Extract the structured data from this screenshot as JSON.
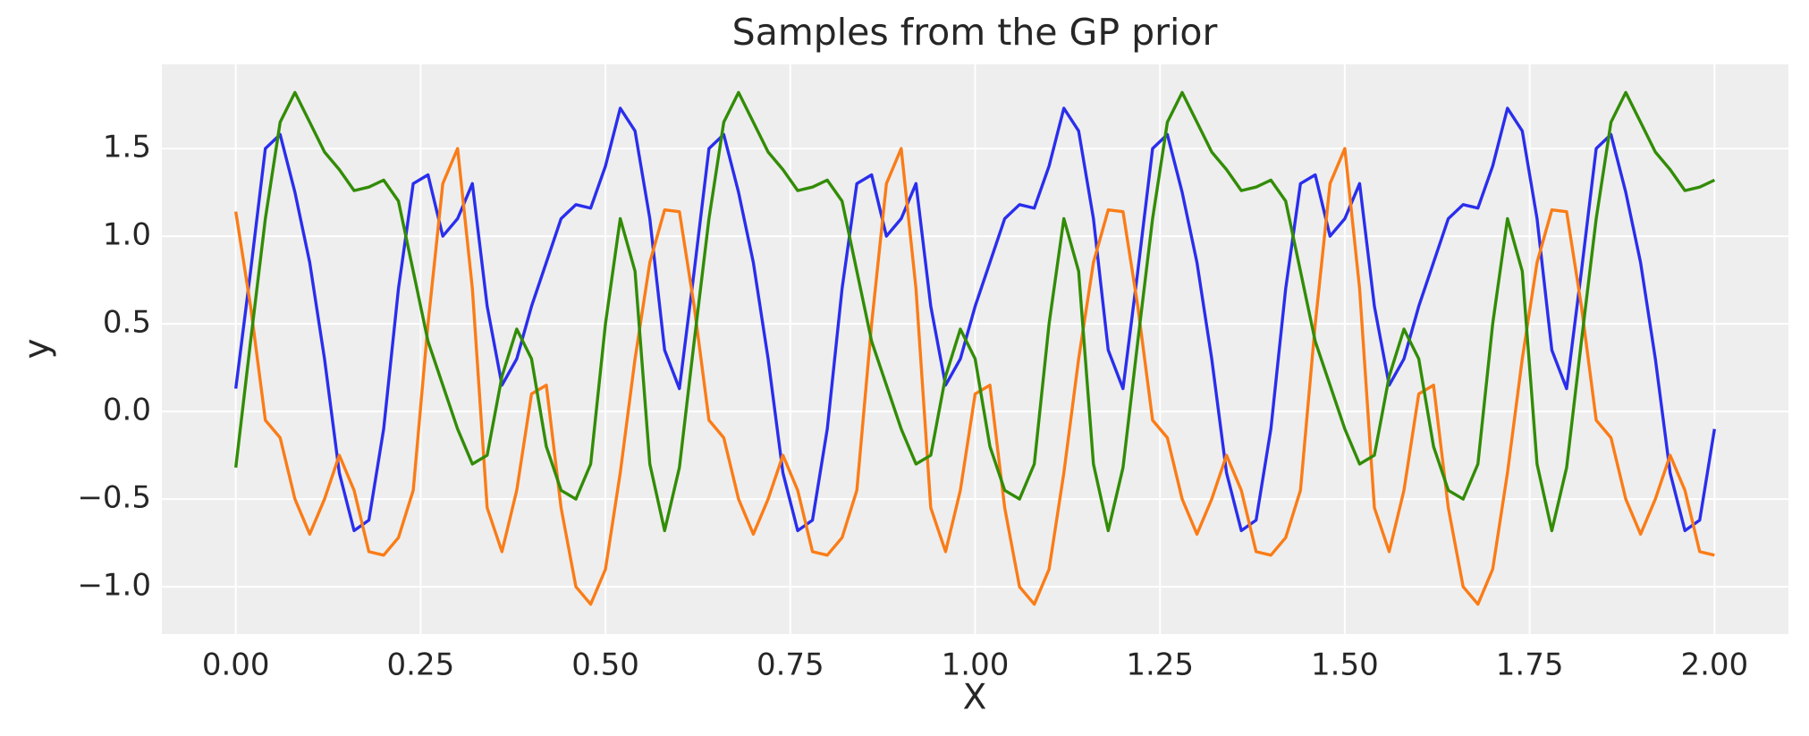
{
  "chart_data": {
    "type": "line",
    "title": "Samples from the GP prior",
    "x_label": "X",
    "y_label": "y",
    "grid": true,
    "xlim": [
      -0.1,
      2.1
    ],
    "ylim": [
      -1.27,
      1.98
    ],
    "xticks": [
      {
        "value": 0,
        "label": "0.00"
      },
      {
        "value": 0.25,
        "label": "0.25"
      },
      {
        "value": 0.5,
        "label": "0.50"
      },
      {
        "value": 0.75,
        "label": "0.75"
      },
      {
        "value": 1,
        "label": "1.00"
      },
      {
        "value": 1.25,
        "label": "1.25"
      },
      {
        "value": 1.5,
        "label": "1.50"
      },
      {
        "value": 1.75,
        "label": "1.75"
      },
      {
        "value": 2,
        "label": "2.00"
      }
    ],
    "yticks": [
      {
        "value": -1,
        "label": "−1.0"
      },
      {
        "value": -0.5,
        "label": "−0.5"
      },
      {
        "value": 0,
        "label": "0.0"
      },
      {
        "value": 0.5,
        "label": "0.5"
      },
      {
        "value": 1,
        "label": "1.0"
      },
      {
        "value": 1.5,
        "label": "1.5"
      }
    ],
    "x": [
      0,
      0.02,
      0.04,
      0.06,
      0.08,
      0.1,
      0.12,
      0.14,
      0.16,
      0.18,
      0.2,
      0.22,
      0.24,
      0.26,
      0.28,
      0.3,
      0.32,
      0.34,
      0.36,
      0.38,
      0.4,
      0.42,
      0.44,
      0.46,
      0.48,
      0.5,
      0.52,
      0.54,
      0.56,
      0.58,
      0.6,
      0.62,
      0.64,
      0.66,
      0.68,
      0.7,
      0.72,
      0.74,
      0.76,
      0.78,
      0.8,
      0.82,
      0.84,
      0.86,
      0.88,
      0.9,
      0.92,
      0.94,
      0.96,
      0.98,
      1,
      1.02,
      1.04,
      1.06,
      1.08,
      1.1,
      1.12,
      1.14,
      1.16,
      1.18,
      1.2,
      1.22,
      1.24,
      1.26,
      1.28,
      1.3,
      1.32,
      1.34,
      1.36,
      1.38,
      1.4,
      1.42,
      1.44,
      1.46,
      1.48,
      1.5,
      1.52,
      1.54,
      1.56,
      1.58,
      1.6,
      1.62,
      1.64,
      1.66,
      1.68,
      1.7,
      1.72,
      1.74,
      1.76,
      1.78,
      1.8,
      1.82,
      1.84,
      1.86,
      1.88,
      1.9,
      1.92,
      1.94,
      1.96,
      1.98,
      2
    ],
    "series": [
      {
        "color": "#2a2eec",
        "values": [
          0.13,
          0.8,
          1.5,
          1.58,
          1.25,
          0.85,
          0.3,
          -0.35,
          -0.68,
          -0.62,
          -0.1,
          0.7,
          1.3,
          1.35,
          1.0,
          1.1,
          1.3,
          0.6,
          0.15,
          0.3,
          0.6,
          0.85,
          1.1,
          1.18,
          1.16,
          1.4,
          1.73,
          1.6,
          1.1,
          0.35,
          0.13,
          0.8,
          1.5,
          1.58,
          1.25,
          0.85,
          0.3,
          -0.35,
          -0.68,
          -0.62,
          -0.1,
          0.7,
          1.3,
          1.35,
          1.0,
          1.1,
          1.3,
          0.6,
          0.15,
          0.3,
          0.6,
          0.85,
          1.1,
          1.18,
          1.16,
          1.4,
          1.73,
          1.6,
          1.1,
          0.35,
          0.13,
          0.8,
          1.5,
          1.58,
          1.25,
          0.85,
          0.3,
          -0.35,
          -0.68,
          -0.62,
          -0.1,
          0.7,
          1.3,
          1.35,
          1.0,
          1.1,
          1.3,
          0.6,
          0.15,
          0.3,
          0.6,
          0.85,
          1.1,
          1.18,
          1.16,
          1.4,
          1.73,
          1.6,
          1.1,
          0.35,
          0.13,
          0.8,
          1.5,
          1.58,
          1.25,
          0.85,
          0.3,
          -0.35,
          -0.68,
          -0.62,
          -0.1
        ]
      },
      {
        "color": "#fa7c17",
        "values": [
          1.14,
          0.6,
          -0.05,
          -0.15,
          -0.5,
          -0.7,
          -0.5,
          -0.25,
          -0.45,
          -0.8,
          -0.82,
          -0.72,
          -0.45,
          0.5,
          1.3,
          1.5,
          0.7,
          -0.55,
          -0.8,
          -0.45,
          0.1,
          0.15,
          -0.55,
          -1.0,
          -1.1,
          -0.9,
          -0.35,
          0.3,
          0.85,
          1.15,
          1.14,
          0.6,
          -0.05,
          -0.15,
          -0.5,
          -0.7,
          -0.5,
          -0.25,
          -0.45,
          -0.8,
          -0.82,
          -0.72,
          -0.45,
          0.5,
          1.3,
          1.5,
          0.7,
          -0.55,
          -0.8,
          -0.45,
          0.1,
          0.15,
          -0.55,
          -1.0,
          -1.1,
          -0.9,
          -0.35,
          0.3,
          0.85,
          1.15,
          1.14,
          0.6,
          -0.05,
          -0.15,
          -0.5,
          -0.7,
          -0.5,
          -0.25,
          -0.45,
          -0.8,
          -0.82,
          -0.72,
          -0.45,
          0.5,
          1.3,
          1.5,
          0.7,
          -0.55,
          -0.8,
          -0.45,
          0.1,
          0.15,
          -0.55,
          -1.0,
          -1.1,
          -0.9,
          -0.35,
          0.3,
          0.85,
          1.15,
          1.14,
          0.6,
          -0.05,
          -0.15,
          -0.5,
          -0.7,
          -0.5,
          -0.25,
          -0.45,
          -0.8,
          -0.82
        ]
      },
      {
        "color": "#328c06",
        "values": [
          -0.32,
          0.4,
          1.1,
          1.65,
          1.82,
          1.65,
          1.48,
          1.38,
          1.26,
          1.28,
          1.32,
          1.2,
          0.8,
          0.4,
          0.15,
          -0.1,
          -0.3,
          -0.25,
          0.2,
          0.47,
          0.3,
          -0.2,
          -0.45,
          -0.5,
          -0.3,
          0.5,
          1.1,
          0.8,
          -0.3,
          -0.68,
          -0.32,
          0.4,
          1.1,
          1.65,
          1.82,
          1.65,
          1.48,
          1.38,
          1.26,
          1.28,
          1.32,
          1.2,
          0.8,
          0.4,
          0.15,
          -0.1,
          -0.3,
          -0.25,
          0.2,
          0.47,
          0.3,
          -0.2,
          -0.45,
          -0.5,
          -0.3,
          0.5,
          1.1,
          0.8,
          -0.3,
          -0.68,
          -0.32,
          0.4,
          1.1,
          1.65,
          1.82,
          1.65,
          1.48,
          1.38,
          1.26,
          1.28,
          1.32,
          1.2,
          0.8,
          0.4,
          0.15,
          -0.1,
          -0.3,
          -0.25,
          0.2,
          0.47,
          0.3,
          -0.2,
          -0.45,
          -0.5,
          -0.3,
          0.5,
          1.1,
          0.8,
          -0.3,
          -0.68,
          -0.32,
          0.4,
          1.1,
          1.65,
          1.82,
          1.65,
          1.48,
          1.38,
          1.26,
          1.28,
          1.32
        ]
      }
    ]
  }
}
